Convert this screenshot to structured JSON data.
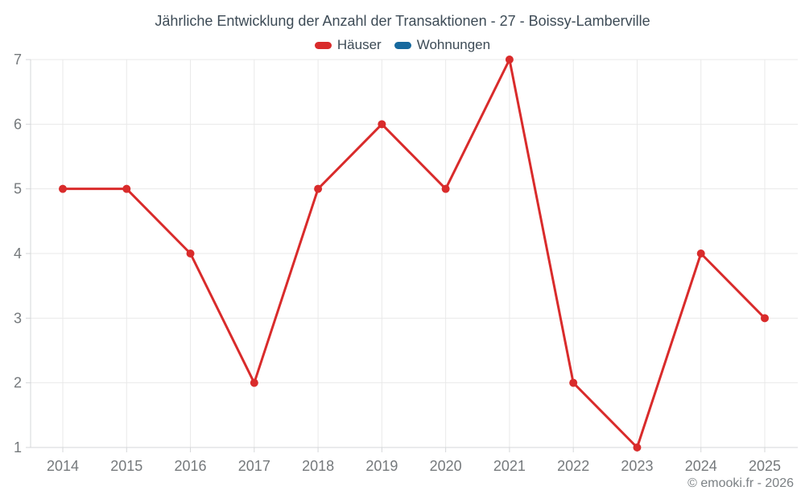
{
  "page": {
    "footer": "© emooki.fr - 2026"
  },
  "chart_data": {
    "type": "line",
    "title": "Jährliche Entwicklung der Anzahl der Transaktionen - 27 - Boissy-Lamberville",
    "categories": [
      "2014",
      "2015",
      "2016",
      "2017",
      "2018",
      "2019",
      "2020",
      "2021",
      "2022",
      "2023",
      "2024",
      "2025"
    ],
    "series": [
      {
        "name": "Häuser",
        "color": "#d92b2b",
        "values": [
          5,
          5,
          4,
          2,
          5,
          6,
          5,
          7,
          2,
          1,
          4,
          3
        ]
      },
      {
        "name": "Wohnungen",
        "color": "#17699e",
        "values": []
      }
    ],
    "xlabel": "",
    "ylabel": "",
    "ylim": [
      1,
      7
    ],
    "ytick_step": 1,
    "grid": true,
    "legend_position": "top",
    "colors": {
      "gridline": "#e9e9e9",
      "axis": "#d5d7d9",
      "tick_text": "#75797c",
      "title_text": "#3d4b56",
      "footer_text": "#7b8084",
      "background": "#ffffff"
    }
  }
}
